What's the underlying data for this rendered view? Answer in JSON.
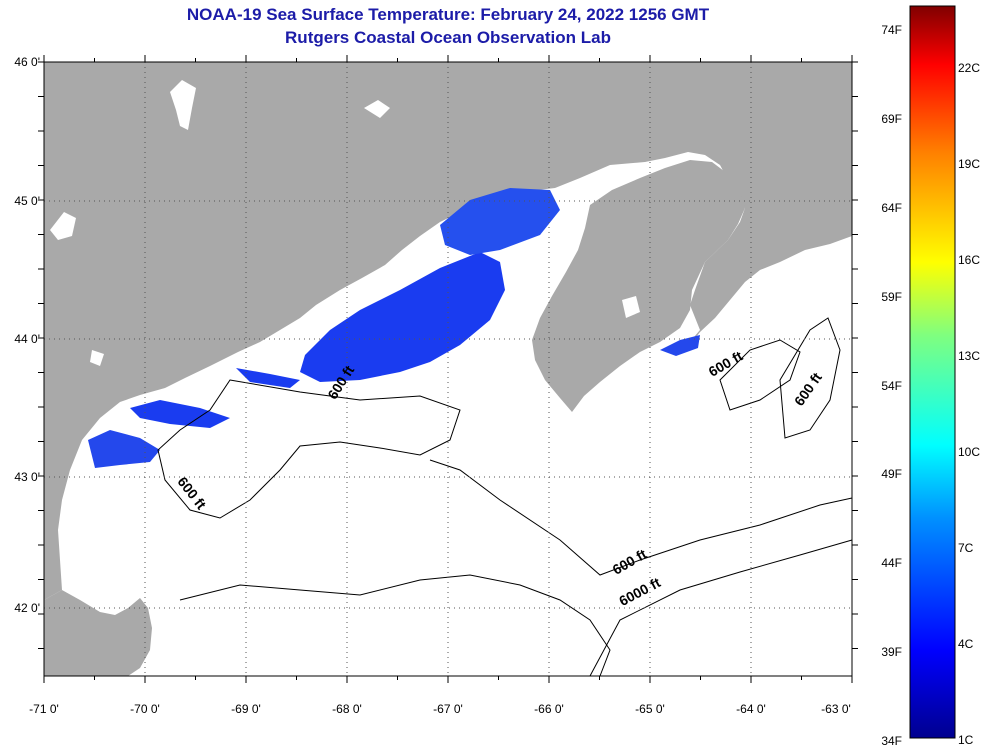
{
  "title": "NOAA-19 Sea Surface Temperature:  February 24, 2022 1256 GMT",
  "subtitle": "Rutgers Coastal Ocean Observation Lab",
  "map": {
    "lon_range": [
      -71,
      -63
    ],
    "lat_range": [
      41.5,
      46
    ],
    "lat_ticks": [
      "46 0'",
      "45 0'",
      "44 0'",
      "43 0'",
      "42 0'"
    ],
    "lon_ticks": [
      "-71 0'",
      "-70 0'",
      "-69 0'",
      "-68 0'",
      "-67 0'",
      "-66 0'",
      "-65 0'",
      "-64 0'",
      "-63 0'"
    ],
    "contour_labels": [
      "600 ft",
      "600 ft",
      "600 ft",
      "600 ft",
      "600 ft",
      "6000 ft"
    ],
    "colors": {
      "land": "#a9a9a9",
      "ocean": "#ffffff",
      "cold_water": "#1030e0"
    }
  },
  "colorbar": {
    "fahrenheit": [
      "74F",
      "69F",
      "64F",
      "59F",
      "54F",
      "49F",
      "44F",
      "39F",
      "34F"
    ],
    "celsius": [
      "22C",
      "19C",
      "16C",
      "13C",
      "10C",
      "7C",
      "4C",
      "1C"
    ]
  }
}
